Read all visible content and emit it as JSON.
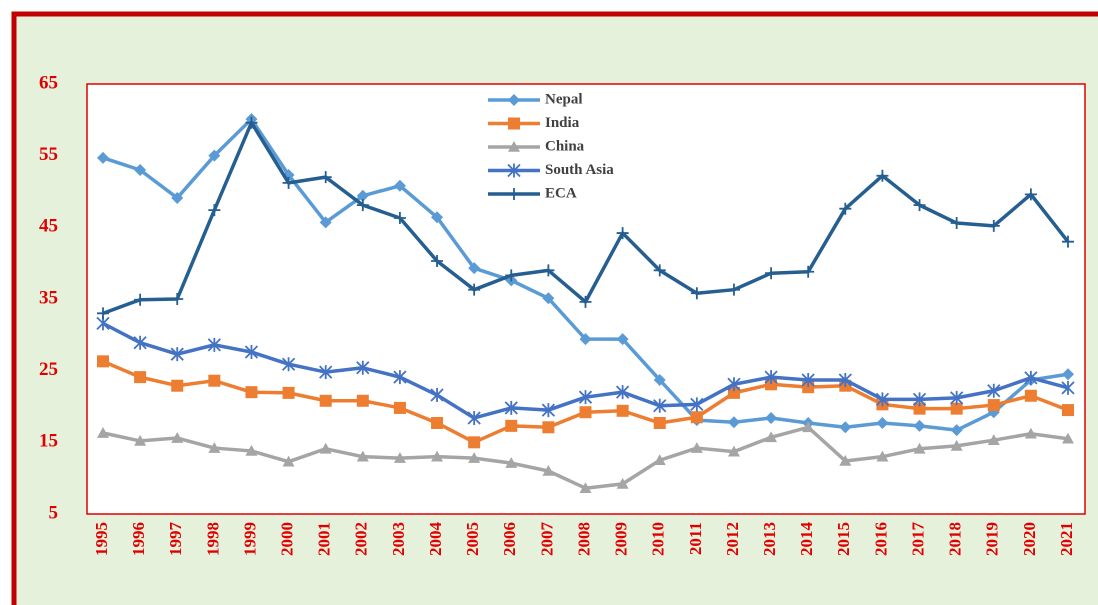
{
  "chart_data": {
    "type": "line",
    "categories": [
      "1995",
      "1996",
      "1997",
      "1998",
      "1999",
      "2000",
      "2001",
      "2002",
      "2003",
      "2004",
      "2005",
      "2006",
      "2007",
      "2008",
      "2009",
      "2010",
      "2011",
      "2012",
      "2013",
      "2014",
      "2015",
      "2016",
      "2017",
      "2018",
      "2019",
      "2020",
      "2021"
    ],
    "series": [
      {
        "name": "Nepal",
        "color": "#5b9bd5",
        "marker": "diamond",
        "values": [
          54.7,
          53.0,
          49.1,
          55.0,
          60.1,
          52.3,
          45.7,
          49.4,
          50.8,
          46.4,
          39.3,
          37.6,
          35.1,
          29.4,
          29.4,
          23.7,
          18.1,
          17.8,
          18.4,
          17.7,
          17.1,
          17.7,
          17.3,
          16.7,
          19.2,
          23.7,
          24.5
        ]
      },
      {
        "name": "India",
        "color": "#ed7d31",
        "marker": "square",
        "values": [
          26.3,
          24.1,
          22.9,
          23.6,
          22.0,
          21.9,
          20.8,
          20.8,
          19.8,
          17.7,
          15.0,
          17.3,
          17.1,
          19.2,
          19.4,
          17.7,
          18.5,
          21.9,
          23.1,
          22.7,
          22.9,
          20.3,
          19.7,
          19.7,
          20.2,
          21.5,
          19.5
        ]
      },
      {
        "name": "China",
        "color": "#a5a5a5",
        "marker": "triangle",
        "values": [
          16.3,
          15.2,
          15.6,
          14.2,
          13.8,
          12.3,
          14.1,
          13.0,
          12.8,
          13.0,
          12.8,
          12.1,
          11.0,
          8.6,
          9.2,
          12.5,
          14.2,
          13.7,
          15.7,
          17.1,
          12.4,
          13.0,
          14.1,
          14.5,
          15.3,
          16.2,
          15.5
        ]
      },
      {
        "name": "South Asia",
        "color": "#4472c4",
        "marker": "star",
        "values": [
          31.6,
          28.9,
          27.3,
          28.6,
          27.6,
          25.9,
          24.8,
          25.4,
          24.1,
          21.6,
          18.4,
          19.8,
          19.5,
          21.3,
          22.0,
          20.1,
          20.3,
          23.1,
          24.1,
          23.7,
          23.7,
          21.0,
          21.0,
          21.2,
          22.2,
          24.0,
          22.6
        ]
      },
      {
        "name": "ECA",
        "color": "#255e91",
        "marker": "plus",
        "values": [
          33.0,
          34.9,
          35.0,
          47.4,
          59.6,
          51.2,
          52.0,
          48.1,
          46.3,
          40.3,
          36.3,
          38.3,
          39.0,
          34.6,
          44.2,
          39.0,
          35.8,
          36.3,
          38.6,
          38.8,
          47.6,
          52.2,
          48.1,
          45.6,
          45.2,
          49.6,
          43.0
        ]
      }
    ],
    "ylim": [
      5,
      65
    ],
    "yticks": [
      5,
      15,
      25,
      35,
      45,
      55,
      65
    ],
    "grid": false,
    "legend": "top"
  }
}
